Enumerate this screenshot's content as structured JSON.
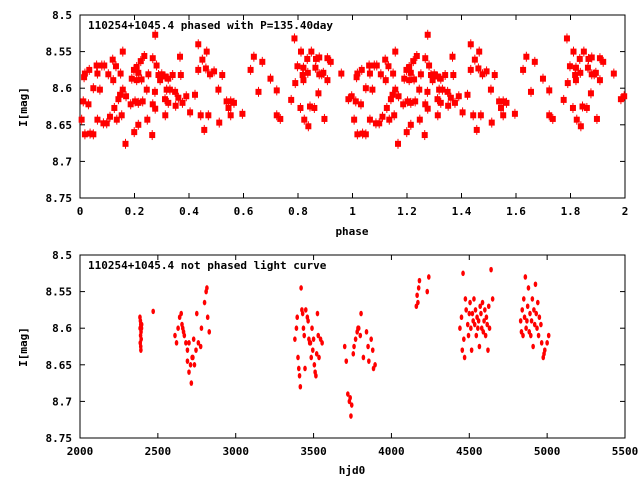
{
  "chart_data": [
    {
      "type": "scatter",
      "title": "110254+1045.4 phased with P=135.40day",
      "xlabel": "phase",
      "ylabel": "I[mag]",
      "xlim": [
        0,
        2
      ],
      "ylim": [
        8.5,
        8.75
      ],
      "y_inverted": true,
      "xticks": [
        "0",
        "0.2",
        "0.4",
        "0.6",
        "0.8",
        "1",
        "1.2",
        "1.4",
        "1.6",
        "1.8",
        "2"
      ],
      "xtick_values": [
        0,
        0.2,
        0.4,
        0.6,
        0.8,
        1,
        1.2,
        1.4,
        1.6,
        1.8,
        2
      ],
      "yticks": [
        "8.5",
        "8.55",
        "8.6",
        "8.65",
        "8.7",
        "8.75"
      ],
      "ytick_values": [
        8.5,
        8.55,
        8.6,
        8.65,
        8.7,
        8.75
      ],
      "repeat_cycles": 2,
      "color": "#ff0000",
      "points": [
        [
          0.006,
          8.643
        ],
        [
          0.018,
          8.663
        ],
        [
          0.037,
          8.662
        ],
        [
          0.049,
          8.663
        ],
        [
          0.018,
          8.58
        ],
        [
          0.015,
          8.585
        ],
        [
          0.034,
          8.575
        ],
        [
          0.061,
          8.569
        ],
        [
          0.08,
          8.569
        ],
        [
          0.089,
          8.569
        ],
        [
          0.064,
          8.58
        ],
        [
          0.049,
          8.6
        ],
        [
          0.073,
          8.602
        ],
        [
          0.012,
          8.618
        ],
        [
          0.031,
          8.622
        ],
        [
          0.064,
          8.643
        ],
        [
          0.086,
          8.648
        ],
        [
          0.098,
          8.648
        ],
        [
          0.11,
          8.639
        ],
        [
          0.135,
          8.643
        ],
        [
          0.153,
          8.637
        ],
        [
          0.126,
          8.627
        ],
        [
          0.141,
          8.615
        ],
        [
          0.147,
          8.609
        ],
        [
          0.12,
          8.561
        ],
        [
          0.132,
          8.57
        ],
        [
          0.157,
          8.55
        ],
        [
          0.104,
          8.581
        ],
        [
          0.122,
          8.589
        ],
        [
          0.149,
          8.58
        ],
        [
          0.157,
          8.602
        ],
        [
          0.167,
          8.676
        ],
        [
          0.169,
          8.611
        ],
        [
          0.186,
          8.622
        ],
        [
          0.19,
          8.587
        ],
        [
          0.199,
          8.66
        ],
        [
          0.202,
          8.618
        ],
        [
          0.214,
          8.62
        ],
        [
          0.23,
          8.618
        ],
        [
          0.198,
          8.575
        ],
        [
          0.208,
          8.571
        ],
        [
          0.214,
          8.579
        ],
        [
          0.223,
          8.563
        ],
        [
          0.236,
          8.556
        ],
        [
          0.214,
          8.65
        ],
        [
          0.208,
          8.589
        ],
        [
          0.226,
          8.588
        ],
        [
          0.245,
          8.602
        ],
        [
          0.251,
          8.581
        ],
        [
          0.247,
          8.643
        ],
        [
          0.267,
          8.559
        ],
        [
          0.276,
          8.527
        ],
        [
          0.265,
          8.664
        ],
        [
          0.267,
          8.622
        ],
        [
          0.276,
          8.628
        ],
        [
          0.281,
          8.569
        ],
        [
          0.288,
          8.582
        ],
        [
          0.275,
          8.605
        ],
        [
          0.294,
          8.589
        ],
        [
          0.3,
          8.581
        ],
        [
          0.312,
          8.584
        ],
        [
          0.318,
          8.602
        ],
        [
          0.324,
          8.587
        ],
        [
          0.312,
          8.615
        ],
        [
          0.324,
          8.62
        ],
        [
          0.34,
          8.582
        ],
        [
          0.33,
          8.602
        ],
        [
          0.349,
          8.605
        ],
        [
          0.351,
          8.624
        ],
        [
          0.313,
          8.637
        ],
        [
          0.361,
          8.613
        ],
        [
          0.367,
          8.557
        ],
        [
          0.37,
          8.582
        ],
        [
          0.376,
          8.62
        ],
        [
          0.39,
          8.611
        ],
        [
          0.404,
          8.633
        ],
        [
          0.422,
          8.609
        ],
        [
          0.434,
          8.54
        ],
        [
          0.434,
          8.575
        ],
        [
          0.449,
          8.561
        ],
        [
          0.443,
          8.637
        ],
        [
          0.456,
          8.657
        ],
        [
          0.465,
          8.55
        ],
        [
          0.462,
          8.573
        ],
        [
          0.477,
          8.581
        ],
        [
          0.492,
          8.577
        ],
        [
          0.471,
          8.637
        ],
        [
          0.508,
          8.602
        ],
        [
          0.511,
          8.647
        ],
        [
          0.522,
          8.582
        ],
        [
          0.538,
          8.618
        ],
        [
          0.553,
          8.618
        ],
        [
          0.565,
          8.62
        ],
        [
          0.545,
          8.627
        ],
        [
          0.553,
          8.637
        ],
        [
          0.596,
          8.635
        ],
        [
          0.626,
          8.575
        ],
        [
          0.638,
          8.557
        ],
        [
          0.655,
          8.605
        ],
        [
          0.669,
          8.564
        ],
        [
          0.699,
          8.587
        ],
        [
          0.722,
          8.603
        ],
        [
          0.722,
          8.637
        ],
        [
          0.735,
          8.642
        ],
        [
          0.775,
          8.616
        ],
        [
          0.787,
          8.532
        ],
        [
          0.79,
          8.593
        ],
        [
          0.798,
          8.57
        ],
        [
          0.809,
          8.627
        ],
        [
          0.811,
          8.55
        ],
        [
          0.82,
          8.572
        ],
        [
          0.817,
          8.582
        ],
        [
          0.82,
          8.589
        ],
        [
          0.823,
          8.643
        ],
        [
          0.834,
          8.56
        ],
        [
          0.836,
          8.579
        ],
        [
          0.838,
          8.652
        ],
        [
          0.844,
          8.625
        ],
        [
          0.849,
          8.55
        ],
        [
          0.86,
          8.627
        ],
        [
          0.864,
          8.572
        ],
        [
          0.866,
          8.56
        ],
        [
          0.878,
          8.558
        ],
        [
          0.875,
          8.607
        ],
        [
          0.878,
          8.581
        ],
        [
          0.887,
          8.581
        ],
        [
          0.893,
          8.579
        ],
        [
          0.897,
          8.642
        ],
        [
          0.908,
          8.559
        ],
        [
          0.908,
          8.589
        ],
        [
          0.92,
          8.564
        ],
        [
          0.959,
          8.58
        ],
        [
          0.985,
          8.615
        ],
        [
          0.997,
          8.611
        ]
      ]
    },
    {
      "type": "scatter",
      "title": "110254+1045.4 not phased light curve",
      "xlabel": "hjd0",
      "ylabel": "I[mag]",
      "xlim": [
        2000,
        5500
      ],
      "ylim": [
        8.5,
        8.75
      ],
      "y_inverted": true,
      "xticks": [
        "2000",
        "2500",
        "3000",
        "3500",
        "4000",
        "4500",
        "5000",
        "5500"
      ],
      "xtick_values": [
        2000,
        2500,
        3000,
        3500,
        4000,
        4500,
        5000,
        5500
      ],
      "yticks": [
        "8.5",
        "8.55",
        "8.6",
        "8.65",
        "8.7",
        "8.75"
      ],
      "ytick_values": [
        8.5,
        8.55,
        8.6,
        8.65,
        8.7,
        8.75
      ],
      "color": "#ff0000",
      "points": [
        [
          2385,
          8.585
        ],
        [
          2388,
          8.59
        ],
        [
          2390,
          8.595
        ],
        [
          2386,
          8.6
        ],
        [
          2392,
          8.605
        ],
        [
          2389,
          8.61
        ],
        [
          2393,
          8.615
        ],
        [
          2387,
          8.62
        ],
        [
          2390,
          8.625
        ],
        [
          2391,
          8.63
        ],
        [
          2395,
          8.6
        ],
        [
          2396,
          8.595
        ],
        [
          2470,
          8.577
        ],
        [
          2610,
          8.61
        ],
        [
          2620,
          8.62
        ],
        [
          2630,
          8.6
        ],
        [
          2640,
          8.585
        ],
        [
          2650,
          8.58
        ],
        [
          2655,
          8.595
        ],
        [
          2660,
          8.6
        ],
        [
          2665,
          8.605
        ],
        [
          2670,
          8.61
        ],
        [
          2680,
          8.62
        ],
        [
          2690,
          8.63
        ],
        [
          2690,
          8.645
        ],
        [
          2700,
          8.62
        ],
        [
          2700,
          8.66
        ],
        [
          2710,
          8.65
        ],
        [
          2715,
          8.675
        ],
        [
          2720,
          8.64
        ],
        [
          2725,
          8.64
        ],
        [
          2730,
          8.615
        ],
        [
          2735,
          8.65
        ],
        [
          2745,
          8.63
        ],
        [
          2750,
          8.58
        ],
        [
          2760,
          8.62
        ],
        [
          2775,
          8.625
        ],
        [
          2780,
          8.6
        ],
        [
          2800,
          8.565
        ],
        [
          2810,
          8.55
        ],
        [
          2815,
          8.545
        ],
        [
          2830,
          8.605
        ],
        [
          2820,
          8.585
        ],
        [
          3380,
          8.615
        ],
        [
          3390,
          8.6
        ],
        [
          3395,
          8.585
        ],
        [
          3400,
          8.64
        ],
        [
          3405,
          8.655
        ],
        [
          3410,
          8.665
        ],
        [
          3415,
          8.68
        ],
        [
          3420,
          8.545
        ],
        [
          3425,
          8.575
        ],
        [
          3430,
          8.58
        ],
        [
          3435,
          8.6
        ],
        [
          3440,
          8.61
        ],
        [
          3445,
          8.655
        ],
        [
          3450,
          8.575
        ],
        [
          3460,
          8.585
        ],
        [
          3465,
          8.59
        ],
        [
          3470,
          8.615
        ],
        [
          3475,
          8.62
        ],
        [
          3480,
          8.62
        ],
        [
          3485,
          8.64
        ],
        [
          3490,
          8.6
        ],
        [
          3495,
          8.63
        ],
        [
          3500,
          8.615
        ],
        [
          3505,
          8.65
        ],
        [
          3510,
          8.66
        ],
        [
          3515,
          8.665
        ],
        [
          3520,
          8.635
        ],
        [
          3525,
          8.58
        ],
        [
          3530,
          8.61
        ],
        [
          3535,
          8.64
        ],
        [
          3545,
          8.615
        ],
        [
          3555,
          8.62
        ],
        [
          3700,
          8.625
        ],
        [
          3710,
          8.645
        ],
        [
          3720,
          8.69
        ],
        [
          3730,
          8.7
        ],
        [
          3735,
          8.695
        ],
        [
          3740,
          8.72
        ],
        [
          3745,
          8.705
        ],
        [
          3755,
          8.635
        ],
        [
          3760,
          8.625
        ],
        [
          3770,
          8.615
        ],
        [
          3780,
          8.605
        ],
        [
          3785,
          8.6
        ],
        [
          3790,
          8.6
        ],
        [
          3800,
          8.61
        ],
        [
          3805,
          8.58
        ],
        [
          3820,
          8.64
        ],
        [
          3840,
          8.605
        ],
        [
          3850,
          8.625
        ],
        [
          3855,
          8.645
        ],
        [
          3870,
          8.615
        ],
        [
          3880,
          8.63
        ],
        [
          3885,
          8.655
        ],
        [
          3895,
          8.65
        ],
        [
          4160,
          8.57
        ],
        [
          4165,
          8.555
        ],
        [
          4170,
          8.565
        ],
        [
          4175,
          8.545
        ],
        [
          4180,
          8.535
        ],
        [
          4230,
          8.55
        ],
        [
          4240,
          8.53
        ],
        [
          4440,
          8.6
        ],
        [
          4450,
          8.585
        ],
        [
          4455,
          8.63
        ],
        [
          4460,
          8.525
        ],
        [
          4465,
          8.615
        ],
        [
          4470,
          8.64
        ],
        [
          4475,
          8.56
        ],
        [
          4480,
          8.575
        ],
        [
          4490,
          8.595
        ],
        [
          4495,
          8.61
        ],
        [
          4500,
          8.58
        ],
        [
          4505,
          8.565
        ],
        [
          4510,
          8.6
        ],
        [
          4515,
          8.63
        ],
        [
          4520,
          8.58
        ],
        [
          4525,
          8.59
        ],
        [
          4530,
          8.56
        ],
        [
          4535,
          8.595
        ],
        [
          4540,
          8.575
        ],
        [
          4545,
          8.61
        ],
        [
          4550,
          8.585
        ],
        [
          4555,
          8.6
        ],
        [
          4560,
          8.59
        ],
        [
          4565,
          8.625
        ],
        [
          4570,
          8.57
        ],
        [
          4575,
          8.58
        ],
        [
          4580,
          8.6
        ],
        [
          4585,
          8.565
        ],
        [
          4590,
          8.605
        ],
        [
          4595,
          8.59
        ],
        [
          4600,
          8.575
        ],
        [
          4605,
          8.61
        ],
        [
          4610,
          8.585
        ],
        [
          4615,
          8.595
        ],
        [
          4620,
          8.63
        ],
        [
          4625,
          8.57
        ],
        [
          4630,
          8.6
        ],
        [
          4640,
          8.52
        ],
        [
          4650,
          8.56
        ],
        [
          4830,
          8.59
        ],
        [
          4835,
          8.605
        ],
        [
          4840,
          8.575
        ],
        [
          4845,
          8.61
        ],
        [
          4850,
          8.56
        ],
        [
          4855,
          8.585
        ],
        [
          4860,
          8.53
        ],
        [
          4865,
          8.6
        ],
        [
          4870,
          8.59
        ],
        [
          4875,
          8.57
        ],
        [
          4880,
          8.545
        ],
        [
          4885,
          8.605
        ],
        [
          4890,
          8.58
        ],
        [
          4895,
          8.61
        ],
        [
          4900,
          8.59
        ],
        [
          4905,
          8.56
        ],
        [
          4910,
          8.625
        ],
        [
          4915,
          8.575
        ],
        [
          4920,
          8.595
        ],
        [
          4925,
          8.54
        ],
        [
          4930,
          8.58
        ],
        [
          4935,
          8.6
        ],
        [
          4940,
          8.565
        ],
        [
          4945,
          8.61
        ],
        [
          4950,
          8.585
        ],
        [
          4960,
          8.595
        ],
        [
          4965,
          8.62
        ],
        [
          4975,
          8.64
        ],
        [
          4985,
          8.63
        ],
        [
          5000,
          8.62
        ],
        [
          5010,
          8.61
        ],
        [
          4980,
          8.635
        ]
      ]
    }
  ]
}
